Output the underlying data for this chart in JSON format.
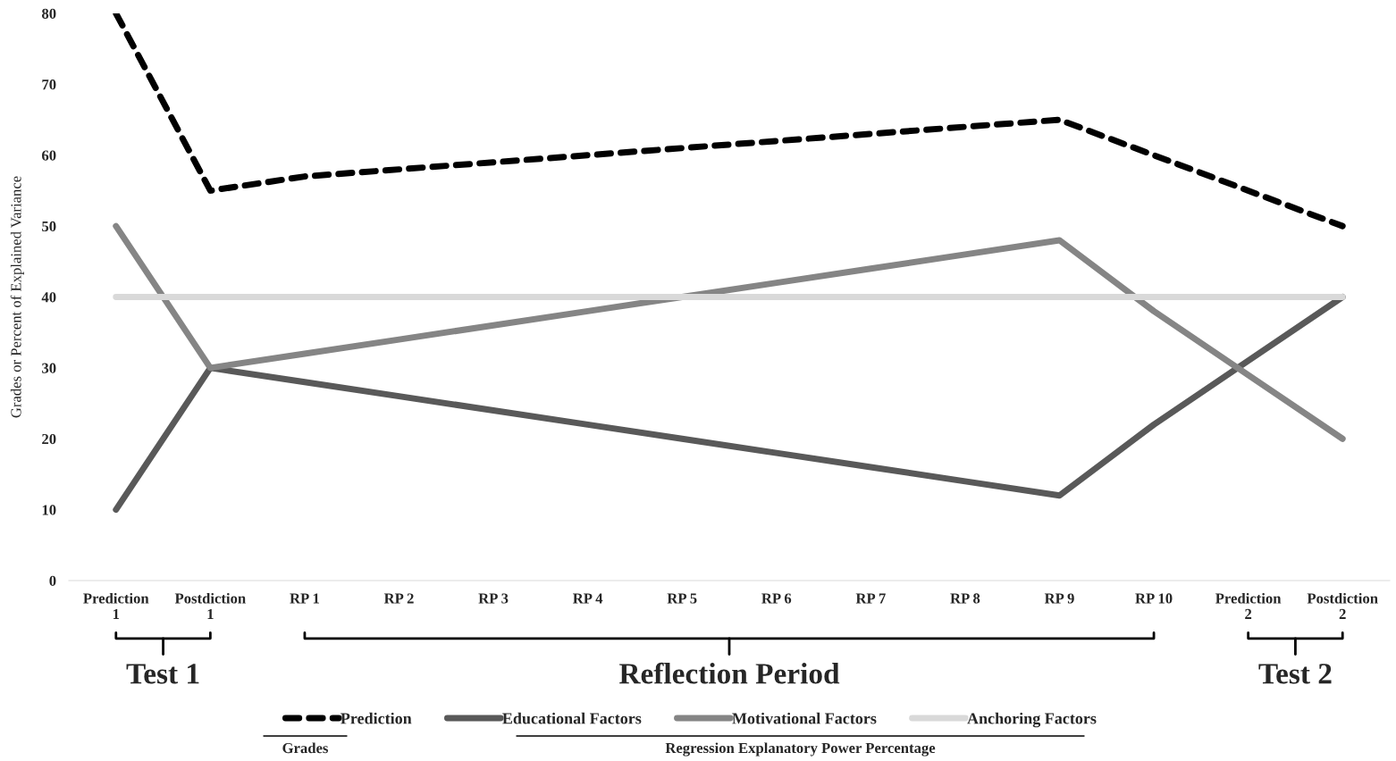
{
  "chart_data": {
    "type": "line",
    "ylabel": "Grades or Percent of Explained Variance",
    "categories": [
      "Prediction\n1",
      "Postdiction\n1",
      "RP 1",
      "RP 2",
      "RP 3",
      "RP 4",
      "RP 5",
      "RP 6",
      "RP 7",
      "RP 8",
      "RP 9",
      "RP 10",
      "Prediction\n2",
      "Postdiction\n2"
    ],
    "series": [
      {
        "name": "Prediction",
        "color": "#000000",
        "line_style": "dashed",
        "values": [
          80,
          55,
          57,
          58,
          59,
          60,
          61,
          62,
          63,
          64,
          65,
          60,
          55,
          50
        ]
      },
      {
        "name": "Educational Factors",
        "color": "#595959",
        "values": [
          10,
          30,
          28,
          26,
          24,
          22,
          20,
          18,
          16,
          14,
          12,
          22,
          31,
          40
        ]
      },
      {
        "name": "Motivational Factors",
        "color": "#858585",
        "values": [
          50,
          30,
          32,
          34,
          36,
          38,
          40,
          42,
          44,
          46,
          48,
          38,
          29,
          20
        ]
      },
      {
        "name": "Anchoring Factors",
        "color": "#d9d9d9",
        "values": [
          40,
          40,
          40,
          40,
          40,
          40,
          40,
          40,
          40,
          40,
          40,
          40,
          40,
          40
        ]
      }
    ],
    "ylim": [
      0,
      80
    ],
    "yticks": [
      0,
      10,
      20,
      30,
      40,
      50,
      60,
      70,
      80
    ],
    "grid": false,
    "legend": "bottom",
    "marker": "none",
    "line_style": "solid",
    "annotations": [
      "Test 1",
      "Reflection Period",
      "Test 2",
      "Grades",
      "Regression Explanatory Power Percentage"
    ]
  }
}
